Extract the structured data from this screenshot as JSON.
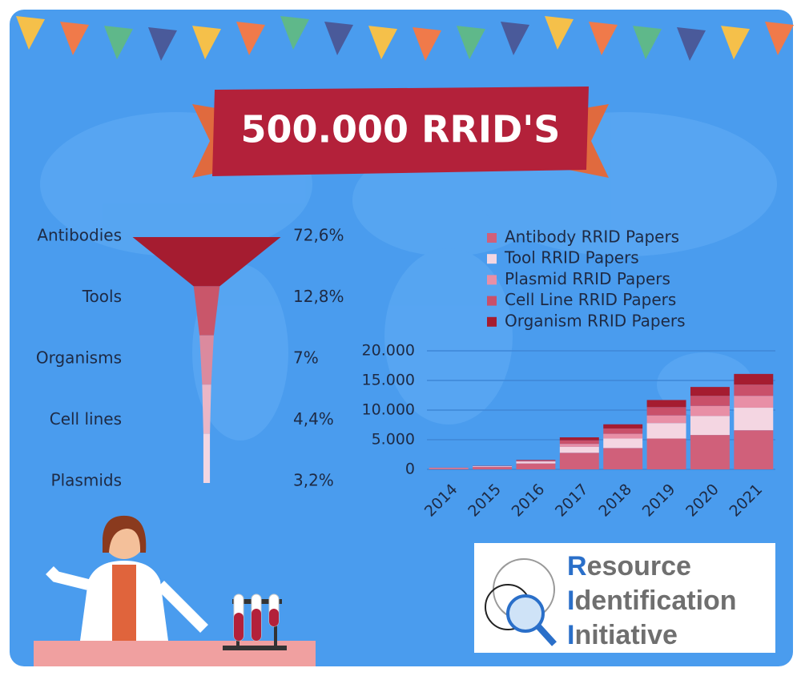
{
  "banner": {
    "title": "500.000 RRID'S"
  },
  "logo": {
    "lines": [
      "Resource",
      "Identification",
      "Initiative"
    ]
  },
  "chart_data": [
    {
      "type": "funnel",
      "categories": [
        "Antibodies",
        "Tools",
        "Organisms",
        "Cell lines",
        "Plasmids"
      ],
      "values": [
        72.6,
        12.8,
        7,
        4.4,
        3.2
      ],
      "value_labels": [
        "72,6%",
        "12,8%",
        "7%",
        "4,4%",
        "3,2%"
      ],
      "colors": [
        "#a51c30",
        "#c9566a",
        "#db8a9e",
        "#eab6c6",
        "#f3d6e2"
      ]
    },
    {
      "type": "bar",
      "stacked": true,
      "categories": [
        "2014",
        "2015",
        "2016",
        "2017",
        "2018",
        "2019",
        "2020",
        "2021"
      ],
      "series": [
        {
          "name": "Antibody RRID Papers",
          "color": "#d0607a",
          "values": [
            200,
            400,
            1000,
            2800,
            3600,
            5200,
            5800,
            6600
          ]
        },
        {
          "name": "Tool RRID Papers",
          "color": "#f4d6e2",
          "values": [
            50,
            100,
            300,
            1000,
            1600,
            2600,
            3200,
            3800
          ]
        },
        {
          "name": "Plasmid RRID Papers",
          "color": "#e88fa6",
          "values": [
            20,
            40,
            100,
            500,
            800,
            1300,
            1700,
            2000
          ]
        },
        {
          "name": "Cell Line RRID Papers",
          "color": "#c9506a",
          "values": [
            20,
            40,
            120,
            600,
            900,
            1400,
            1700,
            1900
          ]
        },
        {
          "name": "Organism RRID Papers",
          "color": "#a51c30",
          "values": [
            10,
            20,
            80,
            500,
            700,
            1200,
            1500,
            1800
          ]
        }
      ],
      "ylim": [
        0,
        20000
      ],
      "yticks": [
        0,
        {
          "value": 5000,
          "label": "5.000"
        },
        {
          "value": 10000,
          "label": "10.000"
        },
        {
          "value": 15000,
          "label": "15.000"
        },
        {
          "value": 20000,
          "label": "20.000"
        }
      ],
      "grid": true,
      "legend": "top"
    }
  ]
}
